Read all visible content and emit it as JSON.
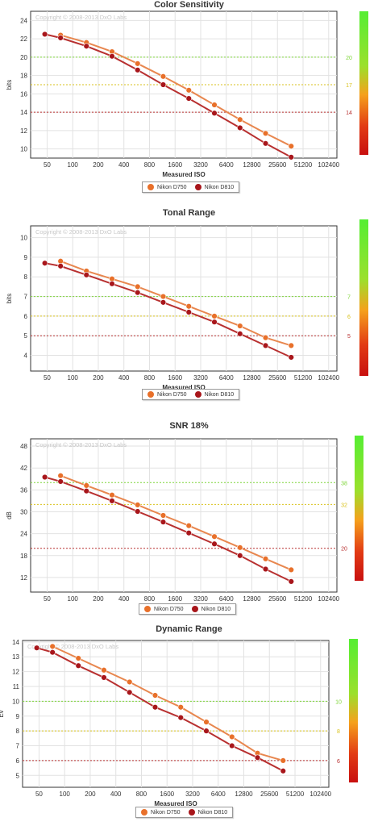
{
  "copyright": "Copyright © 2008-2013 DxO Labs",
  "colors": {
    "d750": "#e8702a",
    "d810": "#a8161b",
    "d750_line": "#e8874f",
    "d810_line": "#b83030"
  },
  "legend": {
    "d750": "Nikon D750",
    "d810": "Nikon D810"
  },
  "chart_data": [
    {
      "type": "line",
      "title": "Color Sensitivity",
      "xlabel": "Measured ISO",
      "ylabel": "bits",
      "x_scale": "log2",
      "x_ticks": [
        "50",
        "100",
        "200",
        "400",
        "800",
        "1600",
        "3200",
        "6400",
        "12800",
        "25600",
        "51200",
        "102400"
      ],
      "y_ticks": [
        "10",
        "12",
        "14",
        "16",
        "18",
        "20",
        "22",
        "24"
      ],
      "ylim": [
        9,
        25
      ],
      "y_tick_labels": {
        "10": "10",
        "12": "12",
        "14": "14",
        "16": "16",
        "18": "18",
        "20": "20",
        "22": "22",
        "24": "24"
      },
      "grid": true,
      "reference_lines": [
        {
          "value": 20,
          "label": "20",
          "color": "#7fd63a"
        },
        {
          "value": 17,
          "label": "17",
          "color": "#d9c21c"
        },
        {
          "value": 14,
          "label": "14",
          "color": "#b83030"
        }
      ],
      "series": [
        {
          "name": "Nikon D750",
          "x": [
            72,
            145,
            290,
            580,
            1160,
            2320,
            4640,
            9280,
            18560,
            37120
          ],
          "y": [
            22.4,
            21.6,
            20.6,
            19.3,
            17.9,
            16.4,
            14.8,
            13.2,
            11.7,
            10.3
          ]
        },
        {
          "name": "Nikon D810",
          "x": [
            47,
            72,
            145,
            290,
            580,
            1160,
            2320,
            4640,
            9280,
            18560,
            37120
          ],
          "y": [
            22.5,
            22.1,
            21.2,
            20.1,
            18.6,
            17.0,
            15.5,
            13.9,
            12.3,
            10.6,
            9.1
          ]
        }
      ]
    },
    {
      "type": "line",
      "title": "Tonal Range",
      "xlabel": "Measured ISO",
      "ylabel": "bits",
      "x_scale": "log2",
      "x_ticks": [
        "50",
        "100",
        "200",
        "400",
        "800",
        "1600",
        "3200",
        "6400",
        "12800",
        "25600",
        "51200",
        "102400"
      ],
      "y_ticks": [
        "4",
        "5",
        "6",
        "7",
        "8",
        "9",
        "10"
      ],
      "ylim": [
        3.2,
        10.6
      ],
      "grid": true,
      "reference_lines": [
        {
          "value": 7,
          "label": "7",
          "color": "#7fd63a"
        },
        {
          "value": 6,
          "label": "6",
          "color": "#d9c21c"
        },
        {
          "value": 5,
          "label": "5",
          "color": "#b83030"
        }
      ],
      "series": [
        {
          "name": "Nikon D750",
          "x": [
            72,
            145,
            290,
            580,
            1160,
            2320,
            4640,
            9280,
            18560,
            37120
          ],
          "y": [
            8.8,
            8.3,
            7.9,
            7.5,
            7.0,
            6.5,
            6.0,
            5.5,
            4.9,
            4.5
          ]
        },
        {
          "name": "Nikon D810",
          "x": [
            47,
            72,
            145,
            290,
            580,
            1160,
            2320,
            4640,
            9280,
            18560,
            37120
          ],
          "y": [
            8.7,
            8.55,
            8.1,
            7.65,
            7.2,
            6.7,
            6.2,
            5.7,
            5.1,
            4.5,
            3.9
          ]
        }
      ]
    },
    {
      "type": "line",
      "title": "SNR 18%",
      "xlabel": "Measured ISO",
      "ylabel": "dB",
      "x_scale": "log2",
      "x_ticks": [
        "50",
        "100",
        "200",
        "400",
        "800",
        "1600",
        "3200",
        "6400",
        "12800",
        "25600",
        "51200",
        "102400"
      ],
      "y_ticks": [
        "12",
        "18",
        "24",
        "30",
        "36",
        "42",
        "48"
      ],
      "ylim": [
        8,
        50
      ],
      "grid": true,
      "reference_lines": [
        {
          "value": 38,
          "label": "38",
          "color": "#7fd63a"
        },
        {
          "value": 32,
          "label": "32",
          "color": "#d9c21c"
        },
        {
          "value": 20,
          "label": "20",
          "color": "#b83030"
        }
      ],
      "series": [
        {
          "name": "Nikon D750",
          "x": [
            72,
            145,
            290,
            580,
            1160,
            2320,
            4640,
            9280,
            18560,
            37120
          ],
          "y": [
            39.9,
            37.2,
            34.6,
            31.9,
            29.0,
            26.2,
            23.2,
            20.2,
            17.1,
            14.1
          ]
        },
        {
          "name": "Nikon D810",
          "x": [
            47,
            72,
            145,
            290,
            580,
            1160,
            2320,
            4640,
            9280,
            18560,
            37120
          ],
          "y": [
            39.5,
            38.3,
            35.7,
            33.0,
            30.1,
            27.2,
            24.2,
            21.2,
            18.0,
            14.3,
            10.9
          ]
        }
      ]
    },
    {
      "type": "line",
      "title": "Dynamic Range",
      "xlabel": "Measured ISO",
      "ylabel": "Ev",
      "x_scale": "log2",
      "x_ticks": [
        "50",
        "100",
        "200",
        "400",
        "800",
        "1600",
        "3200",
        "6400",
        "12800",
        "25600",
        "51200",
        "102400"
      ],
      "y_ticks": [
        "5",
        "6",
        "7",
        "8",
        "9",
        "10",
        "11",
        "12",
        "13",
        "14"
      ],
      "ylim": [
        4.2,
        14.1
      ],
      "grid": true,
      "reference_lines": [
        {
          "value": 10,
          "label": "10",
          "color": "#7fd63a"
        },
        {
          "value": 8,
          "label": "8",
          "color": "#d9c21c"
        },
        {
          "value": 6,
          "label": "6",
          "color": "#b83030"
        }
      ],
      "series": [
        {
          "name": "Nikon D750",
          "x": [
            72,
            145,
            290,
            580,
            1160,
            2320,
            4640,
            9280,
            18560,
            37120
          ],
          "y": [
            13.7,
            12.9,
            12.1,
            11.3,
            10.4,
            9.6,
            8.6,
            7.6,
            6.5,
            6.0
          ]
        },
        {
          "name": "Nikon D810",
          "x": [
            47,
            72,
            145,
            290,
            580,
            1160,
            2320,
            4640,
            9280,
            18560,
            37120
          ],
          "y": [
            13.6,
            13.3,
            12.4,
            11.6,
            10.6,
            9.6,
            8.9,
            8.0,
            7.0,
            6.2,
            5.3
          ]
        }
      ]
    }
  ]
}
